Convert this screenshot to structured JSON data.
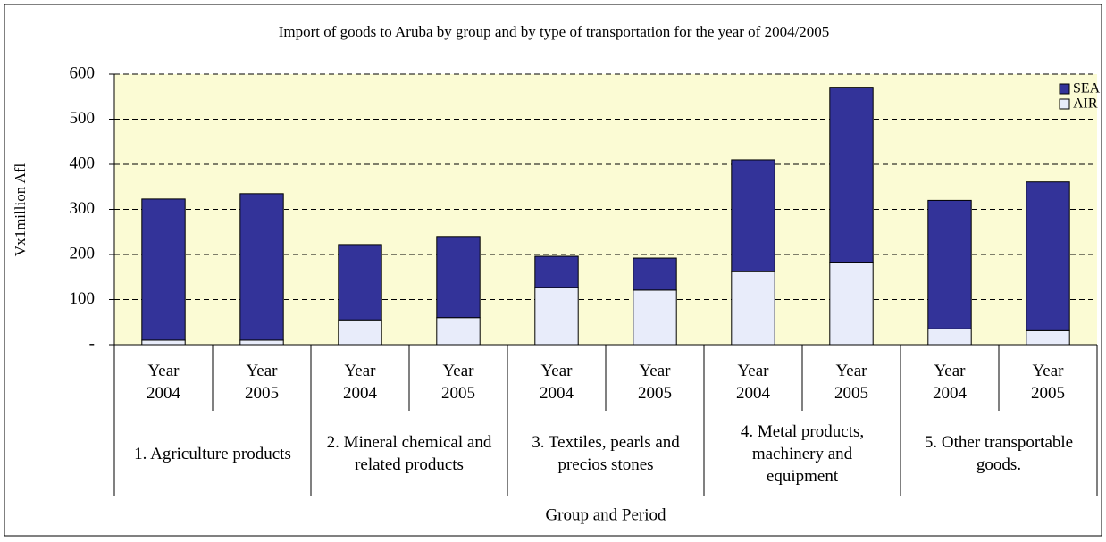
{
  "chart_data": {
    "type": "stacked_bar",
    "title": "Import of goods to Aruba by group and by type of transportation for the year of 2004/2005",
    "y_label": "Vx1million Afl",
    "x_label": "Group and Period",
    "categories": [
      "Year 2004",
      "Year 2005",
      "Year 2004",
      "Year 2005",
      "Year 2004",
      "Year 2005",
      "Year 2004",
      "Year 2005",
      "Year 2004",
      "Year 2005"
    ],
    "groups": [
      "1. Agriculture products",
      "2. Mineral chemical and related products",
      "3. Textiles, pearls and precios stones",
      "4. Metal products, machinery and equipment",
      "5. Other transportable goods."
    ],
    "series": [
      {
        "name": "AIR",
        "color": "#e8ecfa",
        "values": [
          10,
          10,
          55,
          60,
          127,
          121,
          162,
          183,
          35,
          31
        ]
      },
      {
        "name": "SEA",
        "color": "#333399",
        "values": [
          313,
          325,
          167,
          180,
          69,
          71,
          248,
          388,
          285,
          330
        ]
      }
    ],
    "ylim": [
      0,
      600
    ],
    "yticks": [
      {
        "value": 0,
        "label": "-"
      },
      100,
      200,
      300,
      400,
      500,
      600
    ],
    "grid": true,
    "legend": "upper right",
    "plot_background": "#fbfbd4"
  }
}
